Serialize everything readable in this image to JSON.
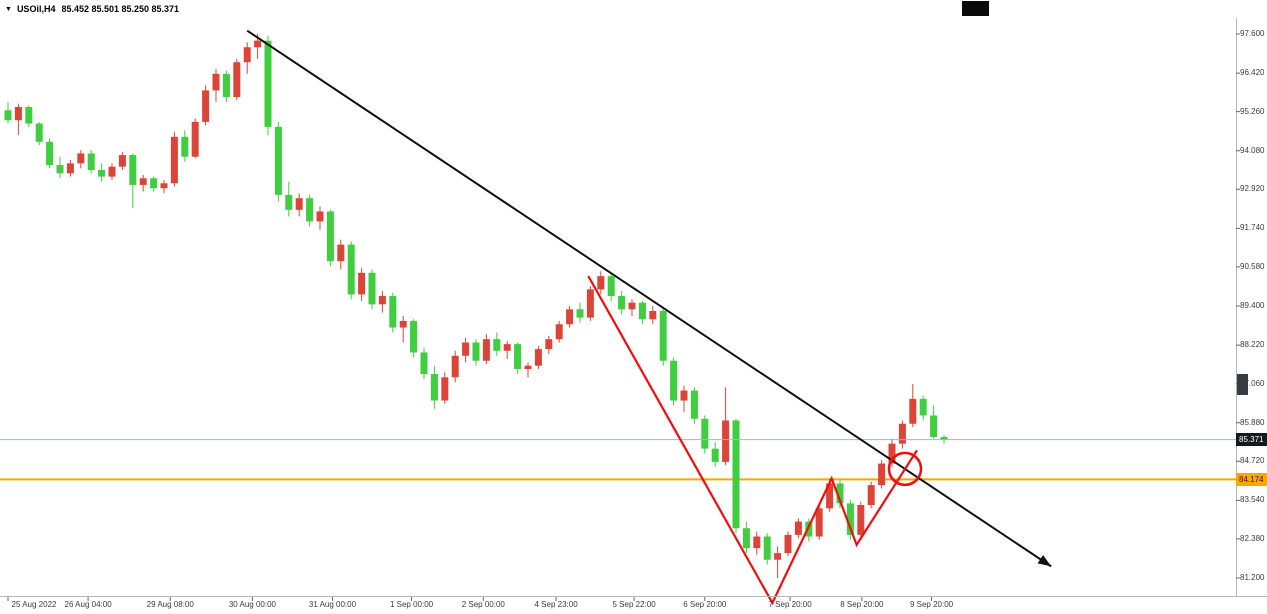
{
  "topbar": {
    "symbol_text": "USOil,H4",
    "ohlc_text": "85.452 85.501 85.250 85.371",
    "dropdown_glyph": "▼"
  },
  "chart_data": {
    "type": "candlestick",
    "symbol": "USOil",
    "timeframe": "H4",
    "current_bar": {
      "open": "85.452",
      "high": "85.501",
      "low": "85.250",
      "close": "85.371"
    },
    "ylim": [
      81.2,
      97.6
    ],
    "grid": "off",
    "y_ticks": [
      "97.600",
      "96.420",
      "95.260",
      "94.080",
      "92.920",
      "91.740",
      "90.580",
      "89.400",
      "88.220",
      "87.060",
      "85.880",
      "84.720",
      "83.540",
      "82.380",
      "81.200"
    ],
    "x_labels": [
      {
        "text": "25 Aug 2022",
        "index": 0
      },
      {
        "text": "26 Aug 04:00",
        "index": 7.7
      },
      {
        "text": "29 Aug 08:00",
        "index": 15.6
      },
      {
        "text": "30 Aug 00:00",
        "index": 23.5
      },
      {
        "text": "31 Aug 00:00",
        "index": 31.2
      },
      {
        "text": "1 Sep 00:00",
        "index": 38.8
      },
      {
        "text": "2 Sep 00:00",
        "index": 45.7
      },
      {
        "text": "4 Sep 23:00",
        "index": 52.7
      },
      {
        "text": "5 Sep 22:00",
        "index": 60.2
      },
      {
        "text": "6 Sep 20:00",
        "index": 67.0
      },
      {
        "text": "7 Sep 20:00",
        "index": 75.2
      },
      {
        "text": "8 Sep 20:00",
        "index": 82.1
      },
      {
        "text": "9 Sep 20:00",
        "index": 88.8
      }
    ],
    "colors": {
      "bull": "#DC4437",
      "bear": "#3FCE3F",
      "trendline": "#111111",
      "zigzag": "#F20C0C",
      "orange_line": "#FFA500",
      "current_price_line": "#9FB6C4"
    },
    "current_price": {
      "value": 85.371,
      "label": "85.371"
    },
    "horizontal_line": {
      "value": 84.174,
      "label": "84.174",
      "color": "#FFA500"
    },
    "candles": [
      [
        95.3,
        95.55,
        94.9,
        95.0
      ],
      [
        95.0,
        95.5,
        94.55,
        95.4
      ],
      [
        95.4,
        95.45,
        94.8,
        94.9
      ],
      [
        94.9,
        94.95,
        94.25,
        94.35
      ],
      [
        94.35,
        94.45,
        93.55,
        93.65
      ],
      [
        93.65,
        93.9,
        93.25,
        93.4
      ],
      [
        93.4,
        93.8,
        93.3,
        93.7
      ],
      [
        93.7,
        94.1,
        93.55,
        94.0
      ],
      [
        94.0,
        94.1,
        93.4,
        93.5
      ],
      [
        93.5,
        93.7,
        93.15,
        93.3
      ],
      [
        93.3,
        93.7,
        93.2,
        93.6
      ],
      [
        93.6,
        94.05,
        93.5,
        93.95
      ],
      [
        93.95,
        94.0,
        92.35,
        93.05
      ],
      [
        93.05,
        93.35,
        92.85,
        93.25
      ],
      [
        93.25,
        93.3,
        92.85,
        92.95
      ],
      [
        92.95,
        93.2,
        92.8,
        93.1
      ],
      [
        93.1,
        94.65,
        93.0,
        94.5
      ],
      [
        94.5,
        94.7,
        93.75,
        93.9
      ],
      [
        93.9,
        95.05,
        93.85,
        94.95
      ],
      [
        94.95,
        96.05,
        94.85,
        95.9
      ],
      [
        95.9,
        96.55,
        95.55,
        96.4
      ],
      [
        96.4,
        96.5,
        95.55,
        95.7
      ],
      [
        95.7,
        96.85,
        95.6,
        96.75
      ],
      [
        96.75,
        97.35,
        96.4,
        97.2
      ],
      [
        97.2,
        97.6,
        96.85,
        97.4
      ],
      [
        97.4,
        97.55,
        94.55,
        94.8
      ],
      [
        94.8,
        94.95,
        92.55,
        92.75
      ],
      [
        92.75,
        93.15,
        92.1,
        92.3
      ],
      [
        92.3,
        92.8,
        92.1,
        92.65
      ],
      [
        92.65,
        92.75,
        91.8,
        91.95
      ],
      [
        91.95,
        92.4,
        91.7,
        92.25
      ],
      [
        92.25,
        92.3,
        90.6,
        90.75
      ],
      [
        90.75,
        91.4,
        90.5,
        91.25
      ],
      [
        91.25,
        91.35,
        89.6,
        89.75
      ],
      [
        89.75,
        90.55,
        89.55,
        90.4
      ],
      [
        90.4,
        90.5,
        89.3,
        89.45
      ],
      [
        89.45,
        89.85,
        89.2,
        89.7
      ],
      [
        89.7,
        89.8,
        88.6,
        88.75
      ],
      [
        88.75,
        89.1,
        88.3,
        88.95
      ],
      [
        88.95,
        89.0,
        87.85,
        88.0
      ],
      [
        88.0,
        88.15,
        87.2,
        87.35
      ],
      [
        87.35,
        87.6,
        86.3,
        86.55
      ],
      [
        86.55,
        87.4,
        86.45,
        87.25
      ],
      [
        87.25,
        88.05,
        87.1,
        87.9
      ],
      [
        87.9,
        88.45,
        87.7,
        88.3
      ],
      [
        88.3,
        88.4,
        87.6,
        87.75
      ],
      [
        87.75,
        88.55,
        87.65,
        88.4
      ],
      [
        88.4,
        88.6,
        87.9,
        88.05
      ],
      [
        88.05,
        88.35,
        87.8,
        88.25
      ],
      [
        88.25,
        88.3,
        87.35,
        87.5
      ],
      [
        87.5,
        87.7,
        87.25,
        87.6
      ],
      [
        87.6,
        88.2,
        87.5,
        88.1
      ],
      [
        88.1,
        88.5,
        87.95,
        88.4
      ],
      [
        88.4,
        88.95,
        88.3,
        88.85
      ],
      [
        88.85,
        89.4,
        88.75,
        89.3
      ],
      [
        89.3,
        89.5,
        88.9,
        89.05
      ],
      [
        89.05,
        90.0,
        88.95,
        89.9
      ],
      [
        89.9,
        90.45,
        89.75,
        90.3
      ],
      [
        90.3,
        90.4,
        89.55,
        89.7
      ],
      [
        89.7,
        89.85,
        89.15,
        89.3
      ],
      [
        89.3,
        89.6,
        89.1,
        89.5
      ],
      [
        89.5,
        89.55,
        88.85,
        89.0
      ],
      [
        89.0,
        89.4,
        88.85,
        89.25
      ],
      [
        89.25,
        89.35,
        87.6,
        87.75
      ],
      [
        87.75,
        87.85,
        86.4,
        86.55
      ],
      [
        86.55,
        87.0,
        86.2,
        86.85
      ],
      [
        86.85,
        86.95,
        85.85,
        86.0
      ],
      [
        86.0,
        86.1,
        84.95,
        85.1
      ],
      [
        85.1,
        85.3,
        84.55,
        84.7
      ],
      [
        84.7,
        86.95,
        84.6,
        85.95
      ],
      [
        85.95,
        86.0,
        82.55,
        82.7
      ],
      [
        82.7,
        82.9,
        81.95,
        82.1
      ],
      [
        82.1,
        82.6,
        81.9,
        82.45
      ],
      [
        82.45,
        82.55,
        81.6,
        81.75
      ],
      [
        81.75,
        82.15,
        81.2,
        81.95
      ],
      [
        81.95,
        82.6,
        81.85,
        82.5
      ],
      [
        82.5,
        83.0,
        82.4,
        82.9
      ],
      [
        82.9,
        83.0,
        82.3,
        82.45
      ],
      [
        82.45,
        83.4,
        82.35,
        83.3
      ],
      [
        83.3,
        84.2,
        83.2,
        84.05
      ],
      [
        84.05,
        84.15,
        83.3,
        83.45
      ],
      [
        83.45,
        83.55,
        82.35,
        82.5
      ],
      [
        82.5,
        83.5,
        82.4,
        83.4
      ],
      [
        83.4,
        84.1,
        83.3,
        84.0
      ],
      [
        84.0,
        84.75,
        83.9,
        84.65
      ],
      [
        84.65,
        85.4,
        84.55,
        85.25
      ],
      [
        85.25,
        85.95,
        85.1,
        85.85
      ],
      [
        85.85,
        87.05,
        85.75,
        86.6
      ],
      [
        86.6,
        86.7,
        85.95,
        86.1
      ],
      [
        86.1,
        86.4,
        85.4,
        85.45
      ],
      [
        85.452,
        85.501,
        85.25,
        85.371
      ]
    ],
    "annotations": {
      "trendline": {
        "from": {
          "index": 23.0,
          "price": 97.7
        },
        "to": {
          "index": 100.3,
          "price": 81.55
        },
        "arrow": true
      },
      "zigzag": {
        "points": [
          {
            "index": 55.8,
            "price": 90.3
          },
          {
            "index": 73.5,
            "price": 80.45
          },
          {
            "index": 79.2,
            "price": 84.2
          },
          {
            "index": 81.6,
            "price": 82.2
          },
          {
            "index": 87.4,
            "price": 85.05
          }
        ]
      },
      "circle": {
        "index": 86.25,
        "price": 84.49,
        "radius_px": 16
      }
    }
  }
}
